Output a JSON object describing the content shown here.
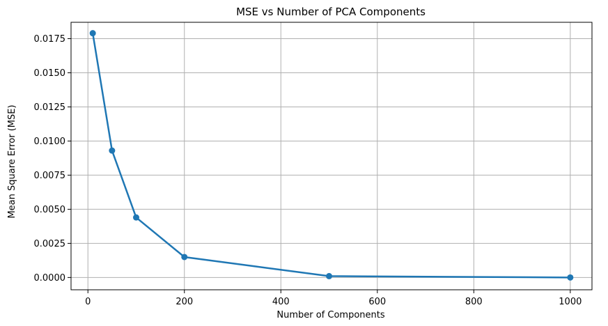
{
  "chart_data": {
    "type": "line",
    "title": "MSE vs Number of PCA Components",
    "xlabel": "Number of Components",
    "ylabel": "Mean Square Error (MSE)",
    "xlim": [
      -35,
      1045
    ],
    "ylim": [
      -0.0009,
      0.0187
    ],
    "xticks": [
      0,
      200,
      400,
      600,
      800,
      1000
    ],
    "xtick_labels": [
      "0",
      "200",
      "400",
      "600",
      "800",
      "1000"
    ],
    "yticks": [
      0.0,
      0.0025,
      0.005,
      0.0075,
      0.01,
      0.0125,
      0.015,
      0.0175
    ],
    "ytick_labels": [
      "0.0000",
      "0.0025",
      "0.0050",
      "0.0075",
      "0.0100",
      "0.0125",
      "0.0150",
      "0.0175"
    ],
    "grid": true,
    "marker": "circle",
    "color": "#1f77b4",
    "series": [
      {
        "x": [
          10,
          50,
          100,
          200,
          500,
          1000
        ],
        "y": [
          0.0179,
          0.0093,
          0.0044,
          0.0015,
          0.0001,
          0.0
        ]
      }
    ]
  }
}
